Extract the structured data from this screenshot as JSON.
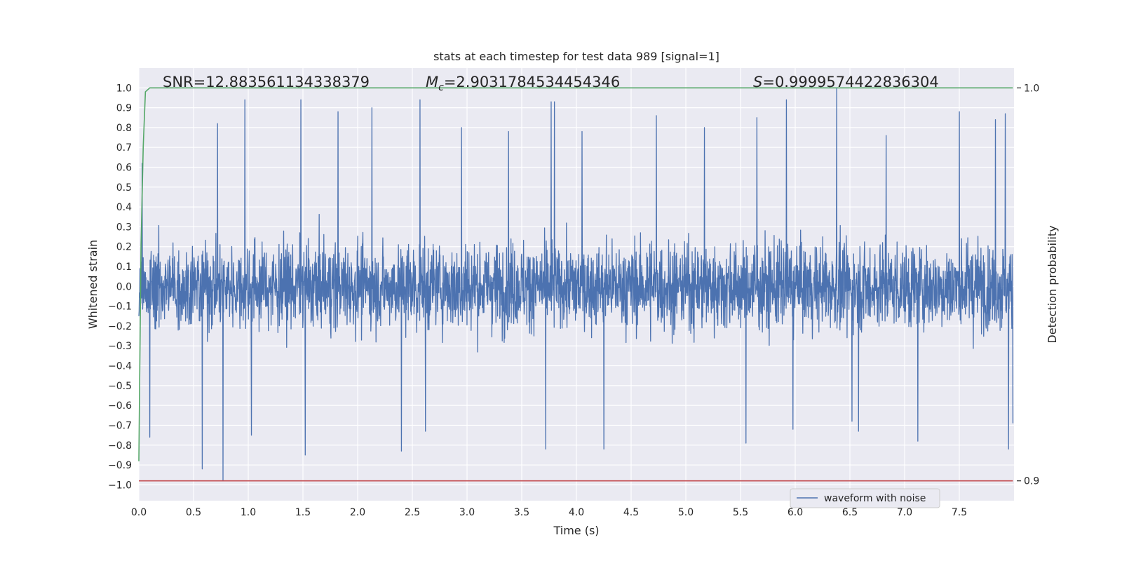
{
  "chart_data": {
    "type": "line",
    "title": "stats at each timestep for test data 989 [signal=1]",
    "xlabel": "Time (s)",
    "ylabel": "Whitened strain",
    "y2label": "Detection probability",
    "xlim": [
      0.0,
      8.0
    ],
    "ylim": [
      -1.08,
      1.1
    ],
    "y2lim": [
      0.9,
      1.0
    ],
    "x_ticks": [
      0.0,
      0.5,
      1.0,
      1.5,
      2.0,
      2.5,
      3.0,
      3.5,
      4.0,
      4.5,
      5.0,
      5.5,
      6.0,
      6.5,
      7.0,
      7.5
    ],
    "x_tick_labels": [
      "0.0",
      "0.5",
      "1.0",
      "1.5",
      "2.0",
      "2.5",
      "3.0",
      "3.5",
      "4.0",
      "4.5",
      "5.0",
      "5.5",
      "6.0",
      "6.5",
      "7.0",
      "7.5"
    ],
    "y_ticks": [
      1.0,
      0.9,
      0.8,
      0.7,
      0.6,
      0.5,
      0.4,
      0.3,
      0.2,
      0.1,
      0.0,
      -0.1,
      -0.2,
      -0.3,
      -0.4,
      -0.5,
      -0.6,
      -0.7,
      -0.8,
      -0.9,
      -1.0
    ],
    "y_tick_labels": [
      "1.0",
      "0.9",
      "0.8",
      "0.7",
      "0.6",
      "0.5",
      "0.4",
      "0.3",
      "0.2",
      "0.1",
      "0.0",
      "−0.1",
      "−0.2",
      "−0.3",
      "−0.4",
      "−0.5",
      "−0.6",
      "−0.7",
      "−0.8",
      "−0.9",
      "−1.0"
    ],
    "y2_ticks": [
      1.0,
      0.9
    ],
    "y2_tick_labels": [
      "1.0",
      "0.9"
    ],
    "grid": true,
    "legend": {
      "placement": "lower-center-right",
      "entries": [
        "waveform with noise"
      ]
    },
    "annotations": {
      "snr": "SNR=12.883561134338379",
      "mc_symbol": "M",
      "mc_subscript": "c",
      "mc_value": "=2.9031784534454346",
      "s_symbol": "S",
      "s_value": "=0.9999574422836304"
    },
    "series": [
      {
        "name": "waveform with noise",
        "axis": "left",
        "style": "noise",
        "color": "#4c72b0",
        "x_range": [
          0.0,
          7.99
        ],
        "noise_envelope": 0.45,
        "peaks": [
          [
            0.03,
            0.62
          ],
          [
            0.1,
            -0.76
          ],
          [
            0.58,
            -0.92
          ],
          [
            0.72,
            0.82
          ],
          [
            0.77,
            -0.98
          ],
          [
            0.97,
            0.94
          ],
          [
            1.03,
            -0.75
          ],
          [
            1.48,
            0.94
          ],
          [
            1.52,
            -0.85
          ],
          [
            1.82,
            0.88
          ],
          [
            2.13,
            0.9
          ],
          [
            2.4,
            -0.83
          ],
          [
            2.57,
            0.94
          ],
          [
            2.62,
            -0.73
          ],
          [
            2.95,
            0.8
          ],
          [
            3.38,
            0.78
          ],
          [
            3.72,
            -0.82
          ],
          [
            3.77,
            0.93
          ],
          [
            3.8,
            0.93
          ],
          [
            4.05,
            0.78
          ],
          [
            4.25,
            -0.82
          ],
          [
            4.73,
            0.86
          ],
          [
            5.17,
            0.8
          ],
          [
            5.55,
            -0.79
          ],
          [
            5.65,
            0.85
          ],
          [
            5.92,
            0.94
          ],
          [
            5.98,
            -0.72
          ],
          [
            6.38,
            1.0
          ],
          [
            6.52,
            -0.68
          ],
          [
            6.58,
            -0.73
          ],
          [
            6.83,
            0.76
          ],
          [
            7.12,
            -0.78
          ],
          [
            7.5,
            0.88
          ],
          [
            7.83,
            0.84
          ],
          [
            7.92,
            0.87
          ],
          [
            7.95,
            -0.82
          ],
          [
            7.99,
            -0.69
          ]
        ]
      },
      {
        "name": "",
        "axis": "right",
        "color": "#55a868",
        "x": [
          0.0,
          0.02,
          0.04,
          0.06,
          0.1,
          0.2,
          1.0,
          4.0,
          7.99
        ],
        "y": [
          0.905,
          0.96,
          0.985,
          0.999,
          1.0,
          1.0,
          1.0,
          1.0,
          1.0
        ]
      },
      {
        "name": "",
        "axis": "right",
        "color": "#c44e52",
        "x": [
          0.0,
          7.99
        ],
        "y": [
          0.9,
          0.9
        ]
      }
    ]
  }
}
